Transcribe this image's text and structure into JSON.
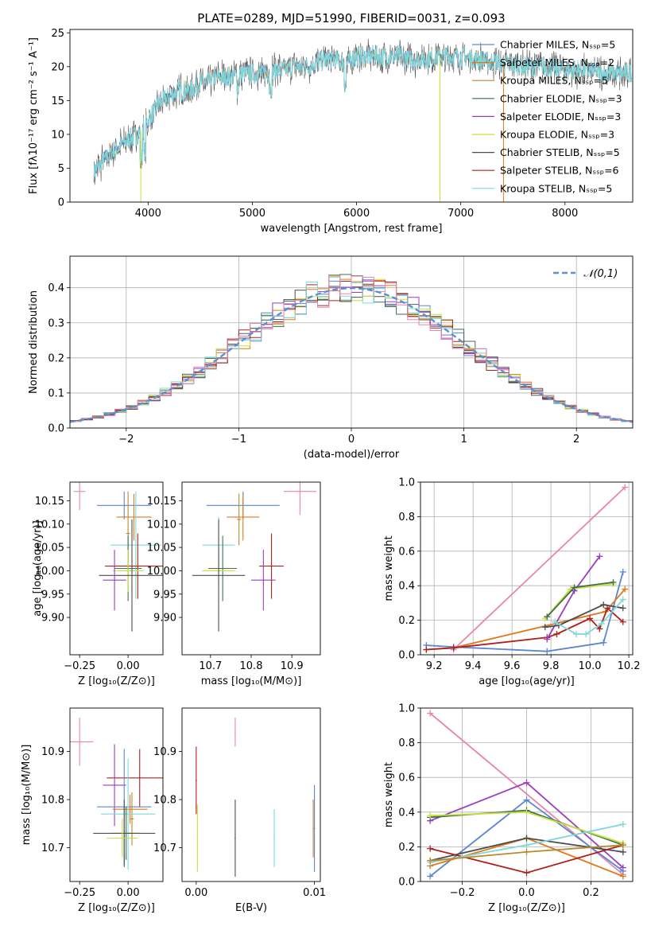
{
  "colors": {
    "chabrier_miles": "#5a86d6",
    "salpeter_miles": "#e0791c",
    "kroupa_miles": "#b88a2e",
    "chabrier_elodie": "#3f6e52",
    "salpeter_elodie": "#9a3ec0",
    "kroupa_elodie": "#c8e03a",
    "chabrier_stelib": "#4d4d4d",
    "salpeter_stelib": "#b0201c",
    "kroupa_stelib": "#7fd8d8",
    "extra_pink": "#e885ad",
    "normal_curve": "#5b8fd6",
    "spectrum_grey": "#555555"
  },
  "chart_data": [
    {
      "type": "line",
      "panel": "spectrum",
      "title": "PLATE=0289, MJD=51990, FIBERID=0031, z=0.093",
      "xlabel": "wavelength [Angstrom, rest frame]",
      "ylabel": "Flux [fλ10⁻¹⁷ erg cm⁻² s⁻¹ A⁻¹]",
      "xlim": [
        3250,
        8650
      ],
      "ylim": [
        0,
        25.5
      ],
      "xticks": [
        4000,
        5000,
        6000,
        7000,
        8000
      ],
      "yticks": [
        0,
        5,
        10,
        15,
        20,
        25
      ],
      "legend_position": "right",
      "legend": [
        {
          "label": "Chabrier MILES, Nₛₛₚ=5",
          "color": "#5a86d6"
        },
        {
          "label": "Salpeter MILES, Nₛₛₚ=2",
          "color": "#e0791c"
        },
        {
          "label": "Kroupa MILES, Nₛₛₚ=5",
          "color": "#b88a2e"
        },
        {
          "label": "Chabrier ELODIE, Nₛₛₚ=3",
          "color": "#3f6e52"
        },
        {
          "label": "Salpeter ELODIE, Nₛₛₚ=3",
          "color": "#9a3ec0"
        },
        {
          "label": "Kroupa ELODIE, Nₛₛₚ=3",
          "color": "#c8e03a"
        },
        {
          "label": "Chabrier STELIB, Nₛₛₚ=5",
          "color": "#4d4d4d"
        },
        {
          "label": "Salpeter STELIB, Nₛₛₚ=6",
          "color": "#b0201c"
        },
        {
          "label": "Kroupa STELIB, Nₛₛₚ=5",
          "color": "#7fd8d8"
        }
      ],
      "continuum_x": [
        3480,
        3600,
        3700,
        3800,
        3900,
        4000,
        4100,
        4200,
        4300,
        4400,
        4500,
        4600,
        4700,
        4800,
        4900,
        5000,
        5100,
        5200,
        5300,
        5400,
        5500,
        5600,
        5700,
        5800,
        5900,
        6000,
        6200,
        6400,
        6600,
        6800,
        7000,
        7200,
        7400,
        7600,
        7800,
        8000,
        8200,
        8400
      ],
      "continuum_y": [
        4.5,
        6.5,
        8.0,
        9.0,
        10.0,
        12.0,
        14.5,
        15.5,
        16.5,
        16.5,
        17.5,
        18.0,
        18.5,
        18.5,
        19.0,
        19.0,
        19.0,
        19.5,
        19.5,
        20.0,
        20.0,
        20.5,
        21.0,
        21.0,
        20.5,
        21.5,
        21.5,
        21.5,
        21.0,
        21.5,
        21.5,
        21.0,
        20.5,
        20.0,
        20.0,
        19.5,
        19.5,
        19.0
      ]
    },
    {
      "type": "line",
      "panel": "residual_histogram",
      "xlabel": "(data-model)/error",
      "ylabel": "Normed distribution",
      "xlim": [
        -2.5,
        2.5
      ],
      "ylim": [
        0,
        0.49
      ],
      "xticks": [
        -2,
        -1,
        0,
        1,
        2
      ],
      "xtick_labels": [
        "−2",
        "−1",
        "0",
        "1",
        "2"
      ],
      "yticks": [
        0.0,
        0.1,
        0.2,
        0.3,
        0.4
      ],
      "grid": true,
      "legend_position": "top-right",
      "legend": [
        {
          "label": "𝒩(0,1)",
          "style": "dashed"
        }
      ],
      "normal": {
        "mean": 0,
        "sigma": 1
      }
    },
    {
      "type": "scatter",
      "panel": "age_vs_Z",
      "xlabel": "Z [log₁₀(Z/Z⊙)]",
      "ylabel": "age  [log₁₀(age/yr)]",
      "xlim": [
        -0.3,
        0.18
      ],
      "ylim": [
        9.82,
        10.19
      ],
      "xticks": [
        -0.25,
        0.0
      ],
      "xtick_labels": [
        "−0.25",
        "0.00"
      ],
      "yticks": [
        9.9,
        9.95,
        10.0,
        10.05,
        10.1,
        10.15
      ],
      "points": [
        {
          "color": "#e885ad",
          "x": -0.25,
          "xerr": 0.03,
          "y": 10.17,
          "yerr": 0.04
        },
        {
          "color": "#5a86d6",
          "x": -0.02,
          "xerr": 0.14,
          "y": 10.14,
          "yerr": 0.03
        },
        {
          "color": "#e0791c",
          "x": 0.03,
          "xerr": 0.09,
          "y": 10.115,
          "yerr": 0.05
        },
        {
          "color": "#b88a2e",
          "x": 0.0,
          "xerr": 0.01,
          "y": 10.08,
          "yerr": 0.09
        },
        {
          "color": "#7fd8d8",
          "x": 0.04,
          "xerr": 0.13,
          "y": 10.055,
          "yerr": 0.115
        },
        {
          "color": "#b0201c",
          "x": 0.05,
          "xerr": 0.17,
          "y": 10.01,
          "yerr": 0.07
        },
        {
          "color": "#3f6e52",
          "x": 0.0,
          "xerr": 0.07,
          "y": 10.005,
          "yerr": 0.07
        },
        {
          "color": "#c8e03a",
          "x": 0.0,
          "xerr": 0.08,
          "y": 10.0,
          "yerr": 0.045
        },
        {
          "color": "#4d4d4d",
          "x": 0.02,
          "xerr": 0.17,
          "y": 9.99,
          "yerr": 0.12
        },
        {
          "color": "#9a3ec0",
          "x": -0.07,
          "xerr": 0.06,
          "y": 9.98,
          "yerr": 0.065
        }
      ]
    },
    {
      "type": "scatter",
      "panel": "age_vs_mass",
      "xlabel": "mass [log₁₀(M/M⊙)]",
      "ylabel": "",
      "xlim": [
        10.63,
        10.97
      ],
      "ylim": [
        9.82,
        10.19
      ],
      "xticks": [
        10.7,
        10.8,
        10.9
      ],
      "xtick_labels": [
        "10.7",
        "10.8",
        "10.9"
      ],
      "yticks": [
        9.9,
        9.95,
        10.0,
        10.05,
        10.1,
        10.15
      ],
      "points": [
        {
          "color": "#e885ad",
          "x": 10.92,
          "xerr": 0.04,
          "y": 10.17,
          "yerr": 0.05
        },
        {
          "color": "#5a86d6",
          "x": 10.78,
          "xerr": 0.09,
          "y": 10.14,
          "yerr": 0.03
        },
        {
          "color": "#e0791c",
          "x": 10.78,
          "xerr": 0.04,
          "y": 10.115,
          "yerr": 0.05
        },
        {
          "color": "#b88a2e",
          "x": 10.77,
          "xerr": 0.005,
          "y": 10.11,
          "yerr": 0.055
        },
        {
          "color": "#7fd8d8",
          "x": 10.72,
          "xerr": 0.04,
          "y": 10.055,
          "yerr": 0.06
        },
        {
          "color": "#b0201c",
          "x": 10.85,
          "xerr": 0.03,
          "y": 10.01,
          "yerr": 0.07
        },
        {
          "color": "#3f6e52",
          "x": 10.73,
          "xerr": 0.035,
          "y": 10.005,
          "yerr": 0.07
        },
        {
          "color": "#c8e03a",
          "x": 10.72,
          "xerr": 0.04,
          "y": 10.0,
          "yerr": 0.04
        },
        {
          "color": "#4d4d4d",
          "x": 10.72,
          "xerr": 0.065,
          "y": 9.99,
          "yerr": 0.12
        },
        {
          "color": "#9a3ec0",
          "x": 10.83,
          "xerr": 0.03,
          "y": 9.98,
          "yerr": 0.065
        }
      ]
    },
    {
      "type": "line",
      "panel": "mass_weight_vs_age",
      "xlabel": "age  [log₁₀(age/yr)]",
      "ylabel": "mass weight",
      "xlim": [
        9.13,
        10.22
      ],
      "ylim": [
        0,
        1.0
      ],
      "xticks": [
        9.2,
        9.4,
        9.6,
        9.8,
        10.0,
        10.2
      ],
      "yticks": [
        0.0,
        0.2,
        0.4,
        0.6,
        0.8,
        1.0
      ],
      "grid": true,
      "series": [
        {
          "color": "#e885ad",
          "x": [
            9.3,
            10.18
          ],
          "y": [
            0.03,
            0.97
          ]
        },
        {
          "color": "#5a86d6",
          "x": [
            9.16,
            9.3,
            9.78,
            10.07,
            10.17
          ],
          "y": [
            0.055,
            0.045,
            0.02,
            0.07,
            0.48
          ]
        },
        {
          "color": "#e0791c",
          "x": [
            9.16,
            9.3,
            10.08,
            10.18
          ],
          "y": [
            0.03,
            0.04,
            0.25,
            0.38
          ]
        },
        {
          "color": "#b0201c",
          "x": [
            9.16,
            9.3,
            9.78,
            9.83,
            10.0,
            10.05,
            10.09,
            10.17
          ],
          "y": [
            0.03,
            0.04,
            0.1,
            0.12,
            0.21,
            0.15,
            0.27,
            0.19
          ]
        },
        {
          "color": "#9a3ec0",
          "x": [
            9.78,
            9.92,
            10.05
          ],
          "y": [
            0.09,
            0.37,
            0.57
          ]
        },
        {
          "color": "#c8e03a",
          "x": [
            9.77,
            9.9,
            10.12
          ],
          "y": [
            0.21,
            0.38,
            0.41
          ]
        },
        {
          "color": "#3f6e52",
          "x": [
            9.78,
            9.92,
            10.12
          ],
          "y": [
            0.22,
            0.39,
            0.42
          ]
        },
        {
          "color": "#4d4d4d",
          "x": [
            9.77,
            9.84,
            10.07,
            10.17
          ],
          "y": [
            0.16,
            0.17,
            0.29,
            0.27
          ]
        },
        {
          "color": "#7fd8d8",
          "x": [
            9.82,
            9.93,
            9.98,
            10.06,
            10.17
          ],
          "y": [
            0.19,
            0.12,
            0.12,
            0.18,
            0.32
          ]
        }
      ]
    },
    {
      "type": "scatter",
      "panel": "mass_vs_Z",
      "xlabel": "Z [log₁₀(Z/Z⊙)]",
      "ylabel": "mass [log₁₀(M/M⊙)]",
      "xlim": [
        -0.3,
        0.18
      ],
      "ylim": [
        10.63,
        10.99
      ],
      "xticks": [
        -0.25,
        0.0
      ],
      "xtick_labels": [
        "−0.25",
        "0.00"
      ],
      "yticks": [
        10.7,
        10.8,
        10.9
      ],
      "points": [
        {
          "color": "#e885ad",
          "x": -0.25,
          "xerr": 0.07,
          "y": 10.92,
          "yerr": 0.05
        },
        {
          "color": "#b0201c",
          "x": 0.06,
          "xerr": 0.17,
          "y": 10.845,
          "yerr": 0.06
        },
        {
          "color": "#9a3ec0",
          "x": -0.07,
          "xerr": 0.06,
          "y": 10.83,
          "yerr": 0.085
        },
        {
          "color": "#5a86d6",
          "x": -0.02,
          "xerr": 0.14,
          "y": 10.785,
          "yerr": 0.12
        },
        {
          "color": "#e0791c",
          "x": 0.01,
          "xerr": 0.09,
          "y": 10.78,
          "yerr": 0.03
        },
        {
          "color": "#b88a2e",
          "x": 0.02,
          "xerr": 0.01,
          "y": 10.76,
          "yerr": 0.055
        },
        {
          "color": "#7fd8d8",
          "x": 0.0,
          "xerr": 0.14,
          "y": 10.77,
          "yerr": 0.115
        },
        {
          "color": "#3f6e52",
          "x": -0.01,
          "xerr": 0.07,
          "y": 10.73,
          "yerr": 0.055
        },
        {
          "color": "#4d4d4d",
          "x": -0.02,
          "xerr": 0.16,
          "y": 10.73,
          "yerr": 0.07
        },
        {
          "color": "#c8e03a",
          "x": -0.03,
          "xerr": 0.08,
          "y": 10.72,
          "yerr": 0.04
        }
      ]
    },
    {
      "type": "scatter",
      "panel": "mass_vs_EBV",
      "xlabel": "E(B-V)",
      "ylabel": "",
      "xlim": [
        -0.0012,
        0.0105
      ],
      "ylim": [
        10.63,
        10.99
      ],
      "xticks": [
        0.0,
        0.01
      ],
      "xtick_labels": [
        "0.00",
        "0.01"
      ],
      "yticks": [
        10.7,
        10.8,
        10.9
      ],
      "points": [
        {
          "color": "#e885ad",
          "x": 0.0033,
          "xerr": 0.0,
          "y": 10.94,
          "yerr": 0.03
        },
        {
          "color": "#b0201c",
          "x": 0.0,
          "xerr": 0.0,
          "y": 10.84,
          "yerr": 0.07
        },
        {
          "color": "#4d4d4d",
          "x": 0.0033,
          "xerr": 0.0,
          "y": 10.72,
          "yerr": 0.08
        },
        {
          "color": "#7fd8d8",
          "x": 0.0066,
          "xerr": 0.0,
          "y": 10.72,
          "yerr": 0.06
        },
        {
          "color": "#c8e03a",
          "x": 0.0001,
          "xerr": 0.0,
          "y": 10.72,
          "yerr": 0.07
        },
        {
          "color": "#5a86d6",
          "x": 0.01,
          "xerr": 0.0,
          "y": 10.74,
          "yerr": 0.09
        },
        {
          "color": "#e0791c",
          "x": 0.0099,
          "xerr": 0.0,
          "y": 10.74,
          "yerr": 0.06
        }
      ]
    },
    {
      "type": "line",
      "panel": "mass_weight_vs_Z",
      "xlabel": "Z [log₁₀(Z/Z⊙)]",
      "ylabel": "mass weight",
      "xlim": [
        -0.33,
        0.33
      ],
      "ylim": [
        0,
        1.0
      ],
      "xticks": [
        -0.2,
        0.0,
        0.2
      ],
      "xtick_labels": [
        "−0.2",
        "0.0",
        "0.2"
      ],
      "yticks": [
        0.0,
        0.2,
        0.4,
        0.6,
        0.8,
        1.0
      ],
      "grid": true,
      "series": [
        {
          "color": "#e885ad",
          "x": [
            -0.3,
            0.3
          ],
          "y": [
            0.97,
            0.04
          ]
        },
        {
          "color": "#9a3ec0",
          "x": [
            -0.3,
            0.0,
            0.3
          ],
          "y": [
            0.35,
            0.57,
            0.08
          ]
        },
        {
          "color": "#5a86d6",
          "x": [
            -0.3,
            0.0,
            0.3
          ],
          "y": [
            0.03,
            0.47,
            0.06
          ]
        },
        {
          "color": "#3f6e52",
          "x": [
            -0.3,
            0.0,
            0.3
          ],
          "y": [
            0.37,
            0.41,
            0.21
          ]
        },
        {
          "color": "#c8e03a",
          "x": [
            -0.3,
            0.0,
            0.3
          ],
          "y": [
            0.38,
            0.4,
            0.22
          ]
        },
        {
          "color": "#e0791c",
          "x": [
            -0.3,
            0.0,
            0.3
          ],
          "y": [
            0.09,
            0.25,
            0.03
          ]
        },
        {
          "color": "#4d4d4d",
          "x": [
            -0.3,
            0.0,
            0.3
          ],
          "y": [
            0.12,
            0.25,
            0.17
          ]
        },
        {
          "color": "#b0201c",
          "x": [
            -0.3,
            0.0,
            0.3
          ],
          "y": [
            0.19,
            0.05,
            0.21
          ]
        },
        {
          "color": "#7fd8d8",
          "x": [
            -0.3,
            0.0,
            0.3
          ],
          "y": [
            0.11,
            0.21,
            0.33
          ]
        },
        {
          "color": "#b88a2e",
          "x": [
            -0.3,
            0.0,
            0.3
          ],
          "y": [
            0.12,
            0.17,
            0.21
          ]
        }
      ]
    }
  ]
}
